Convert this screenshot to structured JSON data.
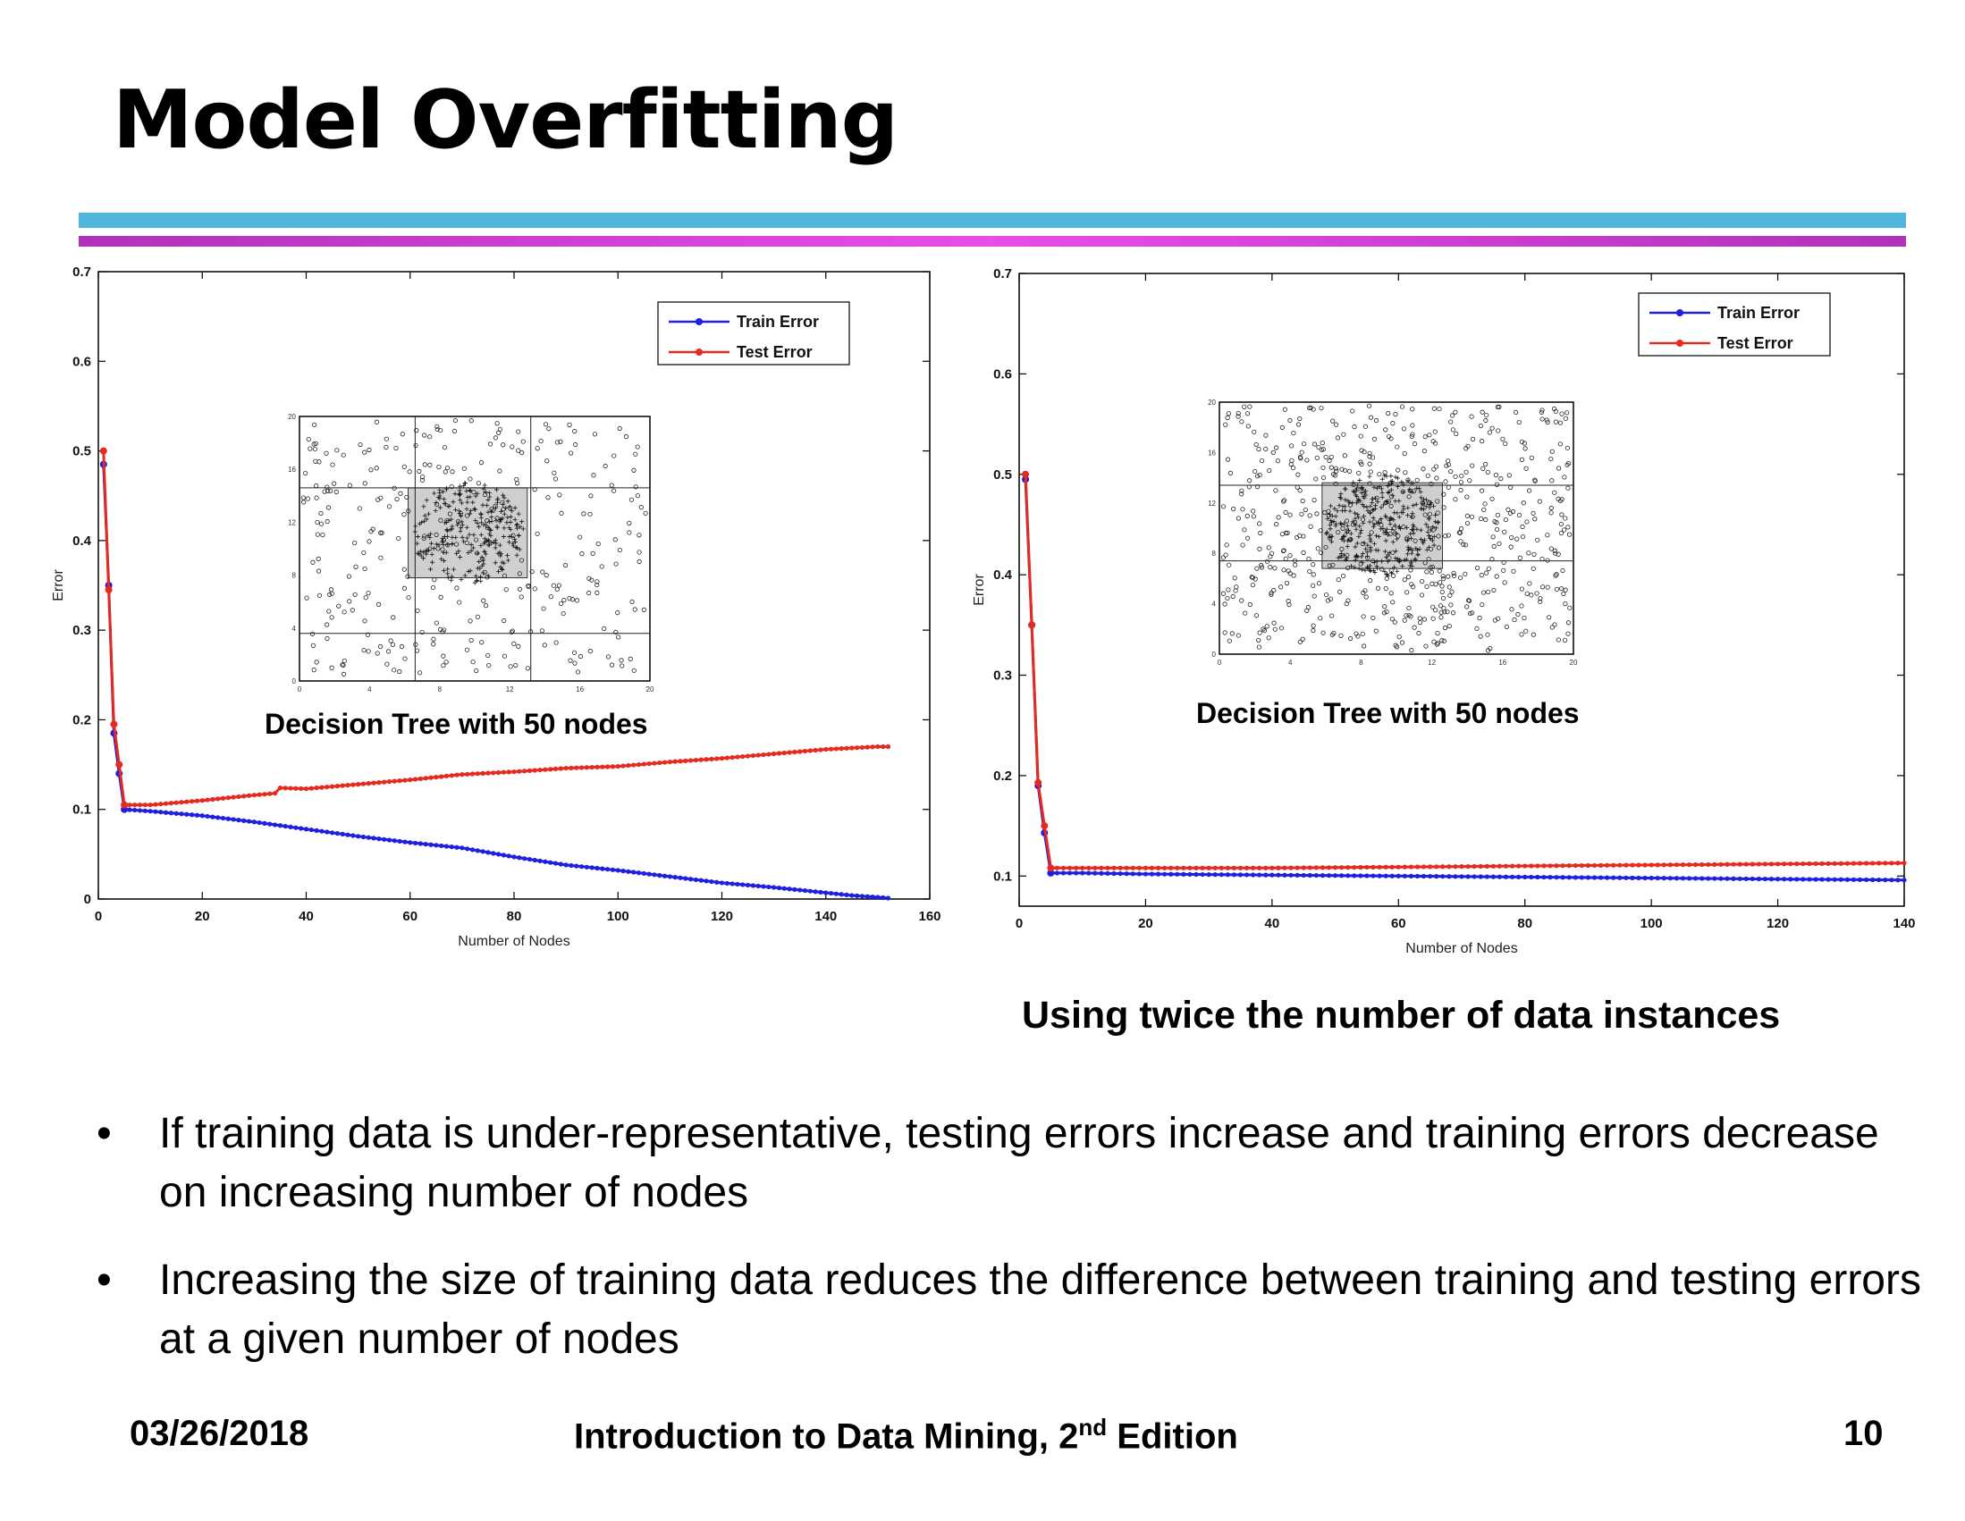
{
  "slide": {
    "title": "Model Overfitting",
    "footer": {
      "date": "03/26/2018",
      "course_prefix": "Introduction to Data Mining, 2",
      "course_sup": "nd",
      "course_suffix": " Edition",
      "page": "10"
    },
    "right_caption": "Using twice the number of data instances",
    "bullets": [
      "If training data is under-representative, testing errors increase and training errors decrease on increasing number of nodes",
      "Increasing the size of training data reduces the difference between training and testing errors at a given number of nodes"
    ],
    "bullet_glyph": "•",
    "colors": {
      "train": "#1f1fe0",
      "test": "#e52a1f",
      "bar_top": "#4fb7de",
      "bar_bottom": "#b032b8"
    }
  },
  "chart_data": [
    {
      "type": "line",
      "xlabel": "Number of Nodes",
      "ylabel": "Error",
      "xlim": [
        0,
        160
      ],
      "ylim": [
        0,
        0.7
      ],
      "xticks": [
        0,
        20,
        40,
        60,
        80,
        100,
        120,
        140,
        160
      ],
      "yticks": [
        0,
        0.1,
        0.2,
        0.3,
        0.4,
        0.5,
        0.6,
        0.7
      ],
      "grid": false,
      "legend": "top-right",
      "inset_caption": "Decision Tree with 50 nodes",
      "inset_ticks": [
        "0",
        "4",
        "8",
        "12",
        "16",
        "20"
      ],
      "series": [
        {
          "name": "Train Error",
          "x": [
            1,
            2,
            3,
            4,
            5,
            10,
            20,
            30,
            40,
            50,
            60,
            70,
            80,
            90,
            100,
            110,
            120,
            130,
            140,
            145,
            150,
            152
          ],
          "y": [
            0.485,
            0.35,
            0.185,
            0.14,
            0.1,
            0.098,
            0.093,
            0.086,
            0.078,
            0.07,
            0.063,
            0.057,
            0.047,
            0.038,
            0.032,
            0.025,
            0.018,
            0.013,
            0.007,
            0.004,
            0.002,
            0.001
          ]
        },
        {
          "name": "Test Error",
          "x": [
            1,
            2,
            3,
            4,
            5,
            10,
            20,
            30,
            34,
            35,
            40,
            50,
            60,
            70,
            80,
            90,
            100,
            110,
            120,
            130,
            140,
            150,
            152
          ],
          "y": [
            0.5,
            0.345,
            0.195,
            0.15,
            0.105,
            0.105,
            0.11,
            0.116,
            0.118,
            0.124,
            0.123,
            0.128,
            0.133,
            0.139,
            0.142,
            0.146,
            0.148,
            0.153,
            0.157,
            0.162,
            0.167,
            0.17,
            0.17
          ]
        }
      ]
    },
    {
      "type": "line",
      "xlabel": "Number of Nodes",
      "ylabel": "Error",
      "xlim": [
        0,
        140
      ],
      "ylim": [
        0.07,
        0.7
      ],
      "xticks": [
        0,
        20,
        40,
        60,
        80,
        100,
        120,
        140
      ],
      "yticks": [
        0.1,
        0.2,
        0.3,
        0.4,
        0.5,
        0.6,
        0.7
      ],
      "grid": false,
      "legend": "top-right",
      "inset_caption": "Decision Tree with 50 nodes",
      "inset_ticks": [
        "0",
        "4",
        "8",
        "12",
        "16",
        "20"
      ],
      "series": [
        {
          "name": "Train Error",
          "x": [
            1,
            2,
            3,
            4,
            5,
            10,
            20,
            40,
            60,
            80,
            100,
            120,
            140
          ],
          "y": [
            0.495,
            0.35,
            0.19,
            0.143,
            0.103,
            0.103,
            0.102,
            0.101,
            0.1,
            0.099,
            0.098,
            0.097,
            0.096
          ]
        },
        {
          "name": "Test Error",
          "x": [
            1,
            2,
            3,
            4,
            5,
            10,
            20,
            40,
            60,
            80,
            100,
            120,
            140
          ],
          "y": [
            0.5,
            0.35,
            0.193,
            0.15,
            0.108,
            0.108,
            0.108,
            0.108,
            0.109,
            0.11,
            0.111,
            0.112,
            0.113
          ]
        }
      ]
    }
  ]
}
